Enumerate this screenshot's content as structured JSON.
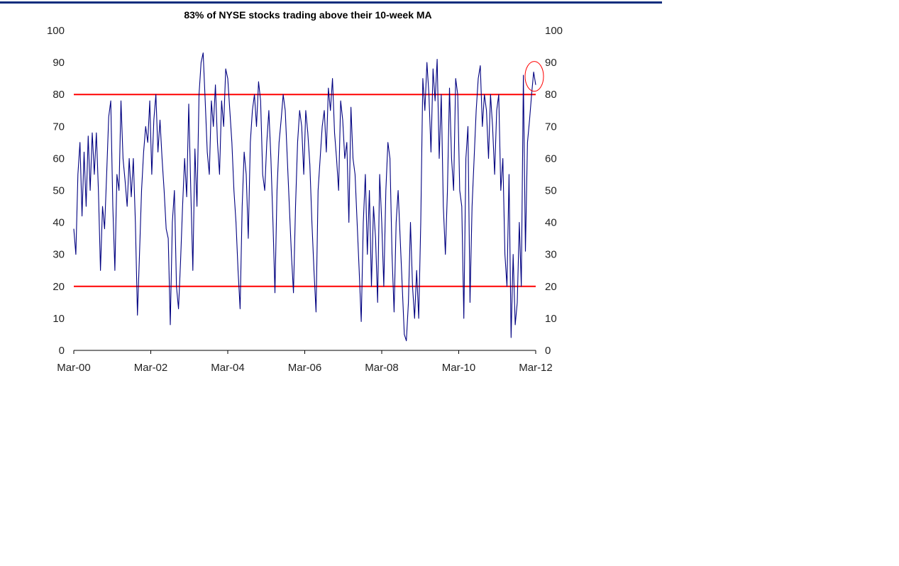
{
  "chart_data": {
    "type": "line",
    "title": "83% of NYSE stocks trading above their 10-week MA",
    "xlabel": "",
    "ylabel": "",
    "ylim": [
      0,
      100
    ],
    "yticks": [
      "0",
      "10",
      "20",
      "30",
      "40",
      "50",
      "60",
      "70",
      "80",
      "90",
      "100"
    ],
    "xticks": [
      "Mar-00",
      "Mar-02",
      "Mar-04",
      "Mar-06",
      "Mar-08",
      "Mar-10",
      "Mar-12"
    ],
    "x_range": [
      "Mar-00",
      "Mar-12"
    ],
    "grid": false,
    "reference_lines": [
      80,
      20
    ],
    "annotation": {
      "type": "ellipse",
      "target": "latest reading",
      "value": 83
    },
    "colors": {
      "series": "#000080",
      "reference": "#ff0000",
      "annotation": "#ff0000",
      "topbar": "#0b2d7d"
    },
    "series": [
      {
        "name": "% of NYSE stocks above 10-week MA",
        "values": [
          38,
          30,
          55,
          65,
          42,
          62,
          45,
          67,
          50,
          68,
          55,
          68,
          50,
          25,
          45,
          38,
          55,
          73,
          78,
          45,
          25,
          55,
          50,
          78,
          60,
          53,
          45,
          60,
          48,
          60,
          40,
          11,
          30,
          50,
          62,
          70,
          65,
          78,
          55,
          72,
          80,
          62,
          72,
          60,
          50,
          38,
          35,
          8,
          40,
          50,
          20,
          13,
          28,
          45,
          60,
          48,
          77,
          50,
          25,
          63,
          45,
          80,
          90,
          93,
          78,
          62,
          55,
          78,
          70,
          83,
          65,
          55,
          78,
          70,
          88,
          85,
          75,
          65,
          50,
          40,
          25,
          13,
          45,
          62,
          55,
          35,
          65,
          75,
          80,
          70,
          84,
          78,
          55,
          50,
          65,
          75,
          60,
          40,
          18,
          50,
          65,
          72,
          80,
          75,
          60,
          45,
          30,
          18,
          45,
          65,
          75,
          70,
          55,
          75,
          68,
          58,
          40,
          25,
          12,
          50,
          60,
          70,
          75,
          62,
          82,
          75,
          85,
          68,
          60,
          50,
          78,
          72,
          60,
          65,
          40,
          76,
          60,
          55,
          40,
          25,
          9,
          40,
          55,
          30,
          50,
          20,
          45,
          35,
          15,
          55,
          40,
          20,
          50,
          65,
          60,
          30,
          12,
          40,
          50,
          35,
          20,
          5,
          3,
          15,
          40,
          20,
          10,
          25,
          10,
          40,
          85,
          75,
          90,
          80,
          62,
          88,
          78,
          91,
          60,
          80,
          45,
          30,
          50,
          82,
          60,
          50,
          85,
          80,
          50,
          45,
          10,
          60,
          70,
          15,
          45,
          60,
          75,
          85,
          89,
          70,
          80,
          75,
          60,
          80,
          70,
          55,
          75,
          80,
          50,
          60,
          30,
          20,
          55,
          4,
          30,
          8,
          15,
          40,
          20,
          86,
          31,
          65,
          72,
          80,
          87,
          83
        ]
      }
    ]
  }
}
